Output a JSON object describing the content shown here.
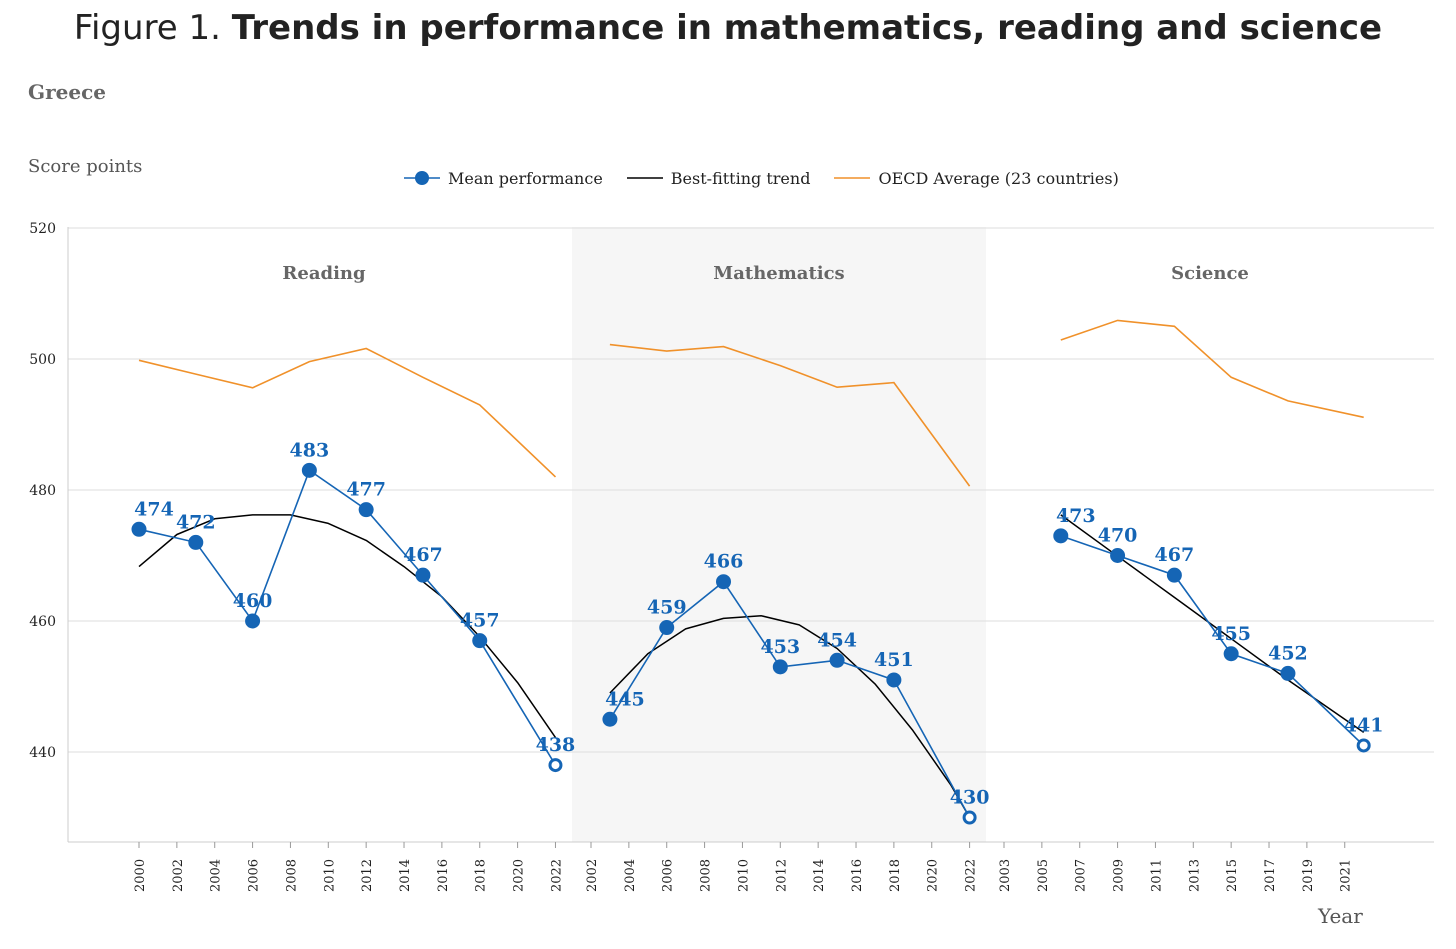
{
  "figure": {
    "title_prefix": "Figure 1.",
    "title_bold": "Trends in performance in mathematics, reading and science",
    "country": "Greece"
  },
  "legend": {
    "mean": "Mean performance",
    "trend": "Best-fitting trend",
    "oecd": "OECD Average (23 countries)"
  },
  "colors": {
    "mean": "#1565b5",
    "trend": "#000000",
    "oecd": "#f0912a",
    "shade": "#f6f6f6",
    "grid": "#dddddd"
  },
  "chart_data": {
    "type": "line",
    "ylabel": "Score points",
    "xlabel": "Year",
    "ylim": [
      426,
      520
    ],
    "yticks": [
      440,
      460,
      480,
      500,
      520
    ],
    "grid": true,
    "legend_position": "top-center",
    "panels": [
      {
        "name": "Reading",
        "shaded": false,
        "xticks": [
          2000,
          2002,
          2004,
          2006,
          2008,
          2010,
          2012,
          2014,
          2016,
          2018,
          2020,
          2022
        ],
        "mean": {
          "x": [
            2000,
            2003,
            2006,
            2009,
            2012,
            2015,
            2018,
            2022
          ],
          "values": [
            474,
            472,
            460,
            483,
            477,
            467,
            457,
            438
          ],
          "hollow_last": true
        },
        "trend": {
          "x": [
            2000,
            2002,
            2004,
            2006,
            2008,
            2010,
            2012,
            2014,
            2016,
            2018,
            2020,
            2022
          ],
          "values": [
            468.3,
            473.2,
            475.6,
            476.2,
            476.2,
            474.9,
            472.3,
            468.3,
            463.7,
            457.6,
            450.6,
            442.2
          ]
        },
        "oecd": {
          "x": [
            2000,
            2003,
            2006,
            2009,
            2012,
            2015,
            2018,
            2022
          ],
          "values": [
            499.8,
            497.7,
            495.6,
            499.6,
            501.6,
            497.2,
            493.0,
            482.0
          ]
        }
      },
      {
        "name": "Mathematics",
        "shaded": true,
        "xticks": [
          2002,
          2004,
          2006,
          2008,
          2010,
          2012,
          2014,
          2016,
          2018,
          2020,
          2022
        ],
        "mean": {
          "x": [
            2003,
            2006,
            2009,
            2012,
            2015,
            2018,
            2022
          ],
          "values": [
            445,
            459,
            466,
            453,
            454,
            451,
            430
          ],
          "hollow_last": true
        },
        "trend": {
          "x": [
            2003,
            2005,
            2007,
            2009,
            2011,
            2013,
            2015,
            2017,
            2019,
            2021,
            2022
          ],
          "values": [
            449.0,
            455.0,
            458.8,
            460.4,
            460.8,
            459.4,
            455.8,
            450.4,
            443.3,
            435.0,
            430.0
          ]
        },
        "oecd": {
          "x": [
            2003,
            2006,
            2009,
            2012,
            2015,
            2018,
            2022
          ],
          "values": [
            502.2,
            501.2,
            501.9,
            499.0,
            495.7,
            496.4,
            480.6
          ]
        }
      },
      {
        "name": "Science",
        "shaded": false,
        "xticks": [
          2003,
          2005,
          2007,
          2009,
          2011,
          2013,
          2015,
          2017,
          2019,
          2021
        ],
        "mean": {
          "x": [
            2006,
            2009,
            2012,
            2015,
            2018,
            2022
          ],
          "values": [
            473,
            470,
            467,
            455,
            452,
            441
          ],
          "hollow_last": true
        },
        "trend": {
          "x": [
            2006,
            2009,
            2012,
            2015,
            2018,
            2022
          ],
          "values": [
            476.2,
            469.9,
            463.6,
            457.3,
            451.0,
            443.0
          ]
        },
        "oecd": {
          "x": [
            2006,
            2009,
            2012,
            2015,
            2018,
            2022
          ],
          "values": [
            502.9,
            505.9,
            505.0,
            497.2,
            493.6,
            491.1
          ]
        }
      }
    ]
  }
}
